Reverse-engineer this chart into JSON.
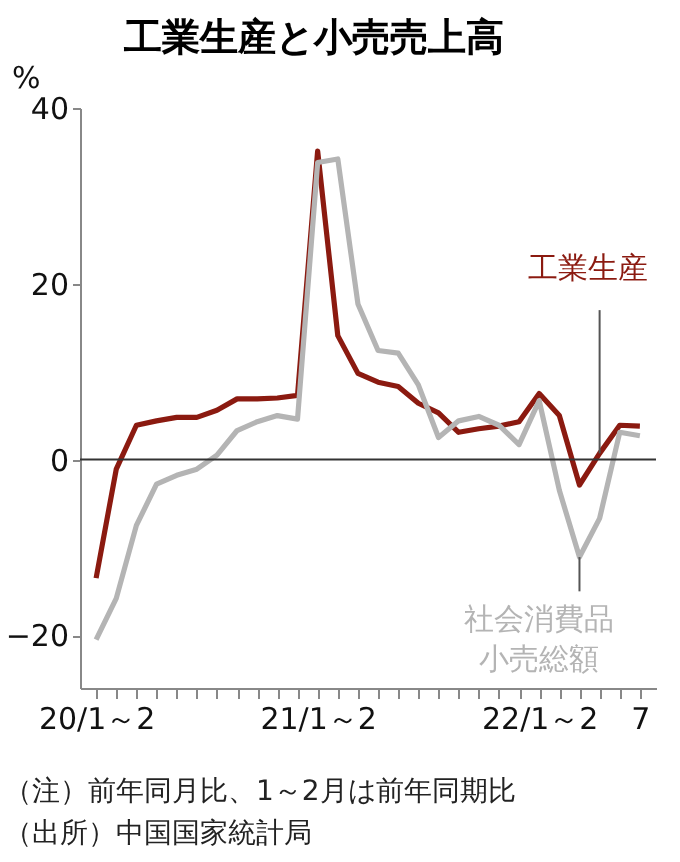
{
  "chart_data": {
    "type": "line",
    "title": "工業生産と小売売上高",
    "ylabel": "%",
    "categories": [
      "20/1～2",
      null,
      null,
      null,
      null,
      null,
      null,
      null,
      null,
      null,
      null,
      "21/1～2",
      null,
      null,
      null,
      null,
      null,
      null,
      null,
      null,
      null,
      null,
      "22/1～2",
      null,
      null,
      null,
      null,
      "7"
    ],
    "series": [
      {
        "name": "工業生産",
        "color": "#8b1a10",
        "values": [
          -13.5,
          -1.1,
          3.9,
          4.4,
          4.8,
          4.8,
          5.6,
          6.9,
          6.9,
          7.0,
          7.3,
          35.1,
          14.1,
          9.8,
          8.8,
          8.3,
          6.4,
          5.3,
          3.1,
          3.5,
          3.8,
          4.3,
          7.5,
          5.0,
          -2.9,
          0.7,
          3.9,
          3.8
        ]
      },
      {
        "name": "社会消費品小売総額",
        "color": "#b4b4b4",
        "values": [
          -20.5,
          -15.8,
          -7.5,
          -2.8,
          -1.8,
          -1.1,
          0.5,
          3.3,
          4.3,
          5.0,
          4.6,
          33.8,
          34.2,
          17.7,
          12.4,
          12.1,
          8.5,
          2.5,
          4.4,
          4.9,
          3.9,
          1.7,
          6.7,
          -3.5,
          -11.1,
          -6.7,
          3.1,
          2.7
        ]
      }
    ],
    "ylim": [
      -26,
      40
    ],
    "yticks": [
      -20,
      0,
      20,
      40
    ],
    "ref_lines": [
      {
        "axis": "y",
        "value": 0,
        "color": "#333333"
      }
    ],
    "annotations": [
      "（注）前年同月比、1～2月は前年同期比",
      "（出所）中国国家統計局"
    ]
  }
}
